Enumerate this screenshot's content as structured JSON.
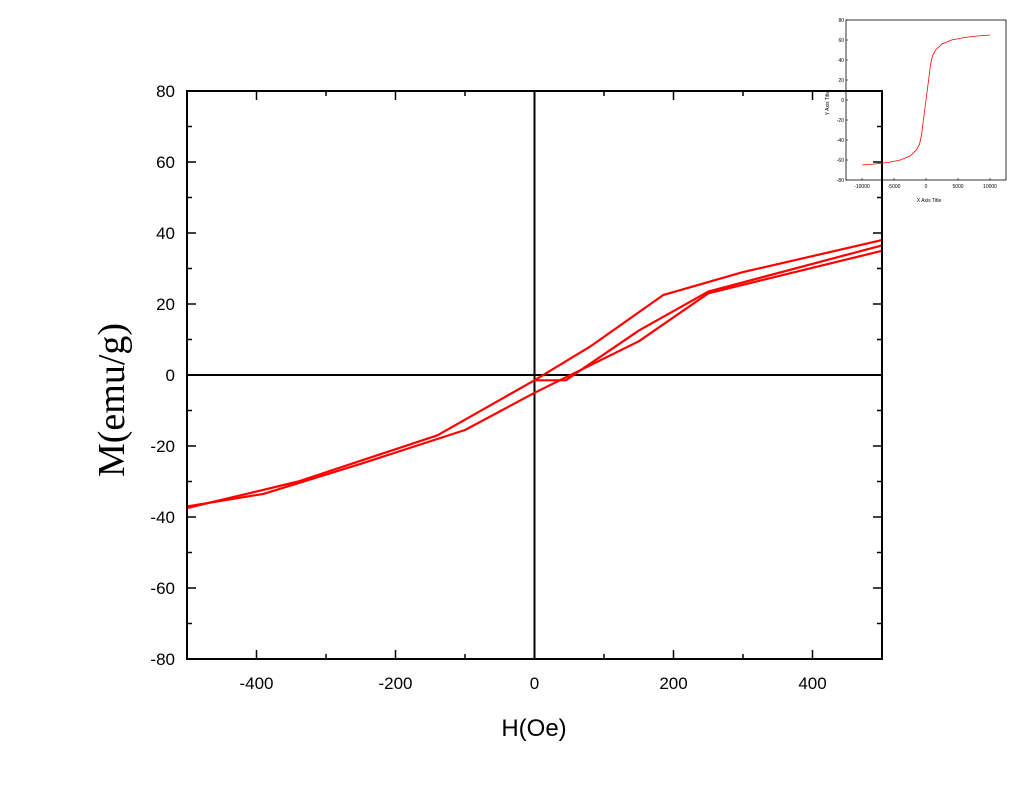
{
  "chart_data": [
    {
      "type": "line",
      "title": "",
      "xlabel": "H(Oe)",
      "ylabel": "M(emu/g)",
      "xlim": [
        -500,
        500
      ],
      "ylim": [
        -80,
        80
      ],
      "x_ticks": [
        -400,
        -200,
        0,
        200,
        400
      ],
      "y_ticks": [
        80,
        60,
        40,
        20,
        0,
        -20,
        -40,
        -60,
        -80
      ],
      "x_tick_labels": [
        "-400",
        "-200",
        "0",
        "200",
        "400"
      ],
      "y_tick_labels": [
        "80",
        "60",
        "40",
        "20",
        "0",
        "-20",
        "-40",
        "-60",
        "-80"
      ],
      "grid": false,
      "zero_lines": true,
      "color": "#ff0000",
      "series": [
        {
          "points": [
            [
              -500,
              -37
            ],
            [
              -390,
              -33.5
            ],
            [
              -250,
              -25
            ],
            [
              -100,
              -15.5
            ],
            [
              0,
              -5
            ],
            [
              150,
              9.5
            ],
            [
              250,
              23
            ],
            [
              500,
              35
            ]
          ]
        },
        {
          "points": [
            [
              500,
              38
            ],
            [
              300,
              29
            ],
            [
              185,
              22.5
            ],
            [
              80,
              8
            ],
            [
              0,
              -1.5
            ],
            [
              -140,
              -17
            ],
            [
              -340,
              -30
            ],
            [
              -500,
              -37.5
            ]
          ]
        },
        {
          "points": [
            [
              0,
              -1.5
            ],
            [
              45,
              -1.5
            ],
            [
              150,
              12.5
            ],
            [
              250,
              23.5
            ],
            [
              500,
              36.5
            ]
          ]
        }
      ]
    },
    {
      "type": "line",
      "title": "",
      "xlabel": "X Axis Title",
      "ylabel": "Y Axis Title",
      "xlim": [
        -12500,
        12500
      ],
      "ylim": [
        -80,
        80
      ],
      "x_ticks": [
        -10000,
        -5000,
        0,
        5000,
        10000
      ],
      "y_ticks": [
        80,
        60,
        40,
        20,
        0,
        -20,
        -40,
        -60,
        -80
      ],
      "x_tick_labels": [
        "-10000",
        "-5000",
        "0",
        "5000",
        "10000"
      ],
      "y_tick_labels": [
        "80",
        "60",
        "40",
        "20",
        "0",
        "-20",
        "-40",
        "-60",
        "-80"
      ],
      "grid": false,
      "color": "#ff0000",
      "series": [
        {
          "points": [
            [
              -10000,
              -65
            ],
            [
              -8000,
              -64
            ],
            [
              -6000,
              -62.5
            ],
            [
              -4000,
              -60
            ],
            [
              -2500,
              -56
            ],
            [
              -1500,
              -50
            ],
            [
              -1000,
              -44
            ],
            [
              -700,
              -35
            ],
            [
              -400,
              -20
            ],
            [
              0,
              0
            ],
            [
              400,
              20
            ],
            [
              700,
              35
            ],
            [
              1000,
              44
            ],
            [
              1500,
              50
            ],
            [
              2500,
              56
            ],
            [
              4000,
              60
            ],
            [
              6000,
              62.5
            ],
            [
              8000,
              64
            ],
            [
              10000,
              65
            ]
          ]
        }
      ]
    }
  ]
}
